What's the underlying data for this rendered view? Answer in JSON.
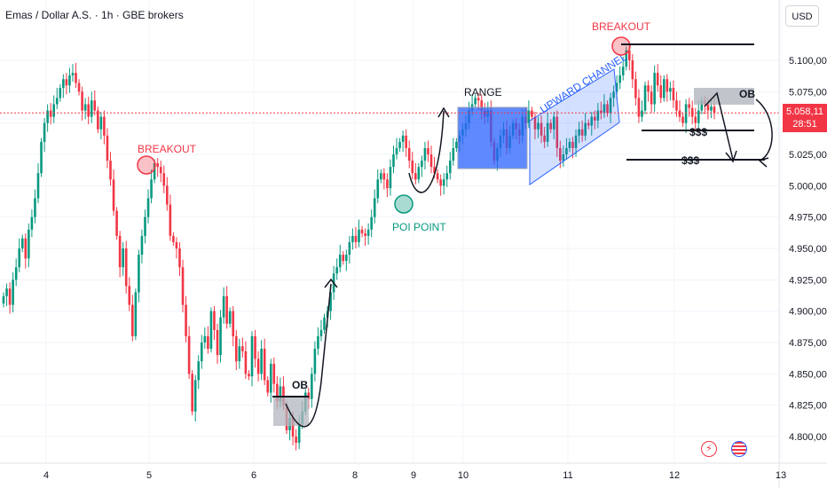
{
  "header": {
    "title": "Emas / Dollar A.S. · 1h · GBE brokers"
  },
  "currency_button": {
    "label": "USD"
  },
  "current_price": {
    "price": "5.058,11",
    "countdown": "28:51",
    "value": 5058.11
  },
  "icons": {
    "lightning": "lightning-icon",
    "flag": "us-flag-icon"
  },
  "colors": {
    "up": "#089981",
    "down": "#f23645",
    "blue_box": "#2962ff",
    "channel": "#2962ff",
    "annotation_red": "#f23645",
    "poi_green": "#089981"
  },
  "chart_data": {
    "type": "candlestick",
    "x_ticks": [
      "4",
      "5",
      "6",
      "8",
      "9",
      "10",
      "11",
      "12",
      "13"
    ],
    "y_ticks": [
      "4.800,00",
      "4.825,00",
      "4.850,00",
      "4.875,00",
      "4.900,00",
      "4.925,00",
      "4.950,00",
      "4.975,00",
      "5.000,00",
      "5.025,00",
      "5.050,00",
      "5.075,00",
      "5.100,00"
    ],
    "ylim": [
      4785,
      5120
    ],
    "current_price": 5058.11,
    "close_series": [
      4912,
      4918,
      4905,
      4925,
      4935,
      4950,
      4958,
      4942,
      4965,
      4975,
      4990,
      5010,
      5035,
      5050,
      5060,
      5055,
      5065,
      5070,
      5078,
      5085,
      5080,
      5088,
      5090,
      5082,
      5075,
      5060,
      5065,
      5055,
      5068,
      5060,
      5045,
      5055,
      5040,
      5020,
      5005,
      4980,
      4960,
      4935,
      4950,
      4920,
      4905,
      4880,
      4915,
      4945,
      4960,
      4975,
      4990,
      5005,
      5018,
      5015,
      5010,
      5000,
      4985,
      4960,
      4955,
      4950,
      4935,
      4905,
      4880,
      4850,
      4820,
      4845,
      4860,
      4875,
      4880,
      4870,
      4900,
      4885,
      4865,
      4895,
      4912,
      4890,
      4900,
      4880,
      4860,
      4872,
      4868,
      4850,
      4848,
      4880,
      4862,
      4850,
      4870,
      4845,
      4835,
      4858,
      4842,
      4828,
      4840,
      4825,
      4805,
      4815,
      4800,
      4795,
      4810,
      4820,
      4835,
      4830,
      4850,
      4870,
      4880,
      4885,
      4895,
      4900,
      4915,
      4930,
      4935,
      4945,
      4940,
      4945,
      4955,
      4960,
      4955,
      4965,
      4962,
      4960,
      4965,
      4975,
      4990,
      5005,
      5010,
      5005,
      4998,
      5015,
      5025,
      5030,
      5035,
      5040,
      5030,
      5020,
      5010,
      5005,
      5015,
      5020,
      5030,
      5025,
      5015,
      5010,
      5005,
      5000,
      5005,
      5010,
      5020,
      5030,
      5035,
      5040,
      5045,
      5050,
      5060,
      5065,
      5070,
      5068,
      5060,
      5055,
      5060,
      5035,
      5020,
      5030,
      5040,
      5045,
      5030,
      5040,
      5050,
      5045,
      5040,
      5055,
      5050,
      5060,
      5055,
      5045,
      5050,
      5040,
      5035,
      5050,
      5045,
      5055,
      5030,
      5020,
      5025,
      5030,
      5035,
      5030,
      5040,
      5045,
      5040,
      5050,
      5048,
      5055,
      5052,
      5060,
      5058,
      5065,
      5058,
      5070,
      5075,
      5082,
      5088,
      5095,
      5108,
      5100,
      5085,
      5070,
      5055,
      5060,
      5080,
      5075,
      5065,
      5090,
      5080,
      5070,
      5085,
      5075,
      5078,
      5068,
      5060,
      5055,
      5050,
      5065,
      5062,
      5055,
      5050,
      5060,
      5068,
      5065,
      5060,
      5063,
      5058
    ],
    "annotations": [
      {
        "text": "BREAKOUT",
        "color": "red"
      },
      {
        "text": "BREAKOUT",
        "color": "red"
      },
      {
        "text": "POI POINT",
        "color": "green"
      },
      {
        "text": "RANGE",
        "color": "black"
      },
      {
        "text": "UPWARD CHANNEL",
        "color": "blue"
      },
      {
        "text": "OB",
        "color": "black"
      },
      {
        "text": "OB",
        "color": "black"
      },
      {
        "text": "$$$",
        "color": "black"
      },
      {
        "text": "$$$",
        "color": "black"
      }
    ]
  }
}
